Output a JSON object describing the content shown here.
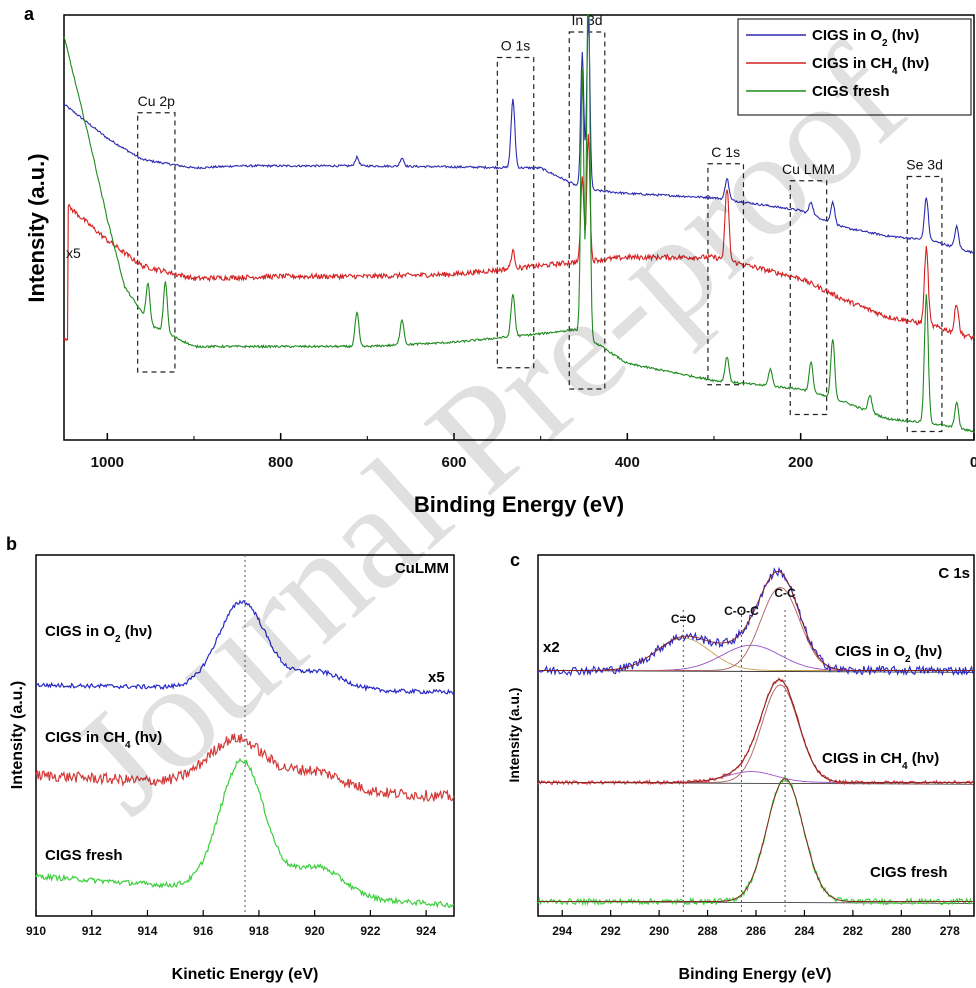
{
  "watermark": "Journal Pre-proof",
  "chart_data": [
    {
      "panel": "a",
      "type": "line",
      "xlabel": "Binding Energy (eV)",
      "ylabel": "Intensity (a.u.)",
      "xlim": [
        1050,
        0
      ],
      "x_ticks": [
        "1000",
        "800",
        "600",
        "400",
        "200",
        "0"
      ],
      "x_tick_values": [
        1000,
        800,
        600,
        400,
        200,
        0
      ],
      "legend": {
        "position": "top-right",
        "entries": [
          {
            "label": "CIGS in O",
            "sub": "2",
            "suffix": " (hν)",
            "color": "#2b2bb0"
          },
          {
            "label": "CIGS in CH",
            "sub": "4",
            "suffix": " (hν)",
            "color": "#d42020"
          },
          {
            "label": "CIGS fresh",
            "sub": "",
            "suffix": "",
            "color": "#1f8a1f"
          }
        ]
      },
      "scale_note": "x5",
      "regions": [
        {
          "label": "Cu 2p",
          "x_range": [
            965,
            922
          ]
        },
        {
          "label": "O 1s",
          "x_range": [
            550,
            508
          ]
        },
        {
          "label": "In 3d",
          "x_range": [
            467,
            426
          ]
        },
        {
          "label": "C 1s",
          "x_range": [
            307,
            266
          ]
        },
        {
          "label": "Cu LMM",
          "x_range": [
            212,
            170
          ]
        },
        {
          "label": "Se 3d",
          "x_range": [
            77,
            37
          ]
        }
      ],
      "series": [
        {
          "name": "CIGS in O2 (hν)",
          "color": "#2b2bb0",
          "baseline": [
            [
              1050,
              0.79
            ],
            [
              1000,
              0.71
            ],
            [
              960,
              0.66
            ],
            [
              900,
              0.64
            ],
            [
              850,
              0.645
            ],
            [
              700,
              0.645
            ],
            [
              500,
              0.64
            ],
            [
              450,
              0.59
            ],
            [
              400,
              0.58
            ],
            [
              300,
              0.57
            ],
            [
              200,
              0.54
            ],
            [
              150,
              0.5
            ],
            [
              100,
              0.48
            ],
            [
              50,
              0.47
            ],
            [
              0,
              0.44
            ]
          ],
          "peaks": [
            [
              532,
              0.16
            ],
            [
              445,
              0.41
            ],
            [
              452,
              0.32
            ],
            [
              285,
              0.05
            ],
            [
              712,
              0.02
            ],
            [
              660,
              0.02
            ],
            [
              188,
              0.03
            ],
            [
              163,
              0.05
            ],
            [
              55,
              0.1
            ],
            [
              20,
              0.05
            ]
          ]
        },
        {
          "name": "CIGS in CH4 (hν)",
          "color": "#d42020",
          "baseline": [
            [
              1045,
              0.55
            ],
            [
              1000,
              0.47
            ],
            [
              960,
              0.41
            ],
            [
              900,
              0.38
            ],
            [
              800,
              0.385
            ],
            [
              700,
              0.385
            ],
            [
              600,
              0.39
            ],
            [
              500,
              0.41
            ],
            [
              455,
              0.42
            ],
            [
              400,
              0.43
            ],
            [
              300,
              0.43
            ],
            [
              200,
              0.38
            ],
            [
              150,
              0.33
            ],
            [
              100,
              0.29
            ],
            [
              50,
              0.27
            ],
            [
              0,
              0.24
            ]
          ],
          "peaks": [
            [
              532,
              0.04
            ],
            [
              445,
              0.3
            ],
            [
              452,
              0.2
            ],
            [
              285,
              0.17
            ],
            [
              55,
              0.18
            ],
            [
              20,
              0.07
            ]
          ]
        },
        {
          "name": "CIGS fresh",
          "color": "#1f8a1f",
          "baseline": [
            [
              1050,
              0.95
            ],
            [
              1020,
              0.7
            ],
            [
              1000,
              0.52
            ],
            [
              980,
              0.36
            ],
            [
              950,
              0.27
            ],
            [
              900,
              0.22
            ],
            [
              800,
              0.22
            ],
            [
              700,
              0.22
            ],
            [
              600,
              0.23
            ],
            [
              500,
              0.25
            ],
            [
              460,
              0.26
            ],
            [
              400,
              0.18
            ],
            [
              300,
              0.14
            ],
            [
              250,
              0.13
            ],
            [
              200,
              0.12
            ],
            [
              150,
              0.09
            ],
            [
              100,
              0.05
            ],
            [
              50,
              0.04
            ],
            [
              0,
              0.02
            ]
          ],
          "peaks": [
            [
              953,
              0.09
            ],
            [
              933,
              0.12
            ],
            [
              712,
              0.08
            ],
            [
              660,
              0.06
            ],
            [
              532,
              0.1
            ],
            [
              445,
              0.88
            ],
            [
              452,
              0.62
            ],
            [
              285,
              0.06
            ],
            [
              235,
              0.04
            ],
            [
              188,
              0.07
            ],
            [
              163,
              0.14
            ],
            [
              120,
              0.04
            ],
            [
              55,
              0.3
            ],
            [
              20,
              0.06
            ]
          ]
        }
      ]
    },
    {
      "panel": "b",
      "type": "line",
      "title": "CuLMM",
      "xlabel": "Kinetic Energy (eV)",
      "ylabel": "Intensity (a.u.)",
      "xlim": [
        910,
        925
      ],
      "x_ticks": [
        "910",
        "912",
        "914",
        "916",
        "918",
        "920",
        "922",
        "924"
      ],
      "x_tick_values": [
        910,
        912,
        914,
        916,
        918,
        920,
        922,
        924
      ],
      "reference_line_x": 917.5,
      "scale_note": "x5",
      "series_labels": [
        {
          "label": "CIGS in O",
          "sub": "2",
          "suffix": " (hν)"
        },
        {
          "label": "CIGS in CH",
          "sub": "4",
          "suffix": " (hν)"
        },
        {
          "label": "CIGS fresh",
          "sub": "",
          "suffix": ""
        }
      ],
      "series": [
        {
          "name": "CIGS in O2 (hν)",
          "color": "#2828c8",
          "offset": 0.64,
          "start": 0.0,
          "end": -0.02,
          "main_peak": [
            917.4,
            0.24,
            0.85
          ],
          "side_peak": [
            920.1,
            0.05,
            0.9
          ],
          "noise": 0.012
        },
        {
          "name": "CIGS in CH4 (hν)",
          "color": "#d23a3a",
          "offset": 0.37,
          "start": 0.02,
          "end": -0.04,
          "main_peak": [
            917.2,
            0.13,
            1.0
          ],
          "side_peak": [
            920.0,
            0.05,
            1.0
          ],
          "noise": 0.03
        },
        {
          "name": "CIGS fresh",
          "color": "#3ccf3c",
          "offset": 0.05,
          "start": 0.06,
          "end": -0.02,
          "main_peak": [
            917.4,
            0.36,
            0.8
          ],
          "side_peak": [
            920.1,
            0.08,
            0.9
          ],
          "noise": 0.014
        }
      ]
    },
    {
      "panel": "c",
      "type": "line",
      "title": "C 1s",
      "xlabel": "Binding Energy (eV)",
      "ylabel": "Intensity (a.u.)",
      "xlim": [
        295,
        277
      ],
      "x_ticks": [
        "294",
        "292",
        "290",
        "288",
        "286",
        "284",
        "282",
        "280",
        "278"
      ],
      "x_tick_values": [
        294,
        292,
        290,
        288,
        286,
        284,
        282,
        280,
        278
      ],
      "reference_lines_x": [
        289.0,
        286.6,
        284.8
      ],
      "component_labels": [
        {
          "label": "C=O",
          "x": 289.0
        },
        {
          "label": "C-O-C",
          "x": 286.6
        },
        {
          "label": "C-C",
          "x": 284.8
        }
      ],
      "scale_note": "x2",
      "series_labels": [
        {
          "label": "CIGS in O",
          "sub": "2",
          "suffix": " (hν)"
        },
        {
          "label": "CIGS in CH",
          "sub": "4",
          "suffix": " (hν)"
        },
        {
          "label": "CIGS fresh",
          "sub": "",
          "suffix": ""
        }
      ],
      "series": [
        {
          "name": "CIGS in O2 (hν)",
          "color": "#2828c8",
          "offset": 0.68,
          "components": [
            [
              289.0,
              0.09,
              1.1,
              "#c8a050"
            ],
            [
              286.2,
              0.07,
              1.2,
              "#9b50c8"
            ],
            [
              285.0,
              0.23,
              0.8,
              "#b06060"
            ]
          ],
          "noise": 0.012
        },
        {
          "name": "CIGS in CH4 (hν)",
          "color": "#d23a3a",
          "offset": 0.37,
          "components": [
            [
              286.2,
              0.03,
              1.0,
              "#9b50c8"
            ],
            [
              285.0,
              0.27,
              0.75,
              "#b06060"
            ]
          ],
          "noise": 0.005
        },
        {
          "name": "CIGS fresh",
          "color": "#3ccf3c",
          "offset": 0.04,
          "components": [
            [
              284.8,
              0.34,
              0.75,
              "#a0522d"
            ]
          ],
          "noise": 0.008
        }
      ]
    }
  ]
}
